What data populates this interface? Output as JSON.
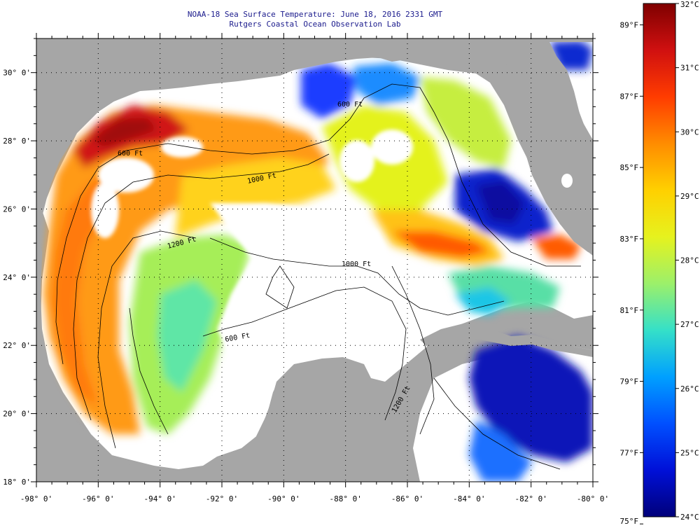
{
  "title": {
    "line1": "NOAA-18 Sea Surface Temperature:  June 18, 2016 2331 GMT",
    "line2": "Rutgers Coastal Ocean Observation Lab"
  },
  "map": {
    "lon_range": [
      -98,
      -80
    ],
    "lat_range": [
      18,
      31
    ],
    "lon_ticks": [
      "-98° 0'",
      "-96° 0'",
      "-94° 0'",
      "-92° 0'",
      "-90° 0'",
      "-88° 0'",
      "-86° 0'",
      "-84° 0'",
      "-82° 0'",
      "-80° 0'"
    ],
    "lat_ticks": [
      "18° 0'",
      "20° 0'",
      "22° 0'",
      "24° 0'",
      "26° 0'",
      "28° 0'",
      "30° 0'"
    ],
    "contour_labels": [
      "600 Ft",
      "1000 Ft",
      "1200 Ft",
      "600 Ft",
      "1000 Ft",
      "600 Ft",
      "1200 Ft"
    ],
    "land_color": "#a6a6a6",
    "nodata_color": "#ffffff"
  },
  "colorbar": {
    "celsius_labels": [
      "32°C",
      "31°C",
      "30°C",
      "29°C",
      "28°C",
      "27°C",
      "26°C",
      "25°C",
      "24°C"
    ],
    "fahrenheit_labels": [
      "89°F",
      "87°F",
      "85°F",
      "83°F",
      "81°F",
      "79°F",
      "77°F",
      "75°F"
    ],
    "stops": [
      "#7f0000",
      "#d01010",
      "#ff3c00",
      "#ff8c00",
      "#ffd000",
      "#e6f21e",
      "#9cf06a",
      "#35e0c8",
      "#00a0ff",
      "#0050ff",
      "#0010d8",
      "#00007a"
    ]
  }
}
